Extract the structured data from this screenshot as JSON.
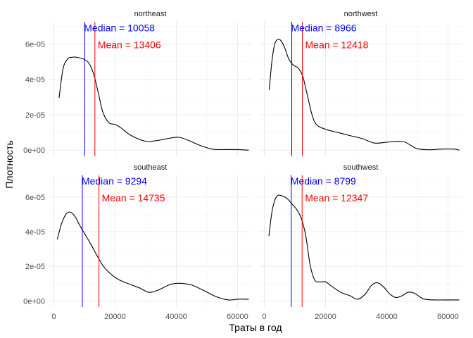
{
  "chart_data": {
    "type": "line",
    "xlabel": "Траты в год",
    "ylabel": "Плотность",
    "xlim": [
      -1500,
      64500
    ],
    "ylim": [
      -3.5e-06,
      7.25e-05
    ],
    "x_ticks": [
      0,
      20000,
      40000,
      60000
    ],
    "x_tick_labels": [
      "0",
      "20000",
      "40000",
      "60000"
    ],
    "y_ticks": [
      0,
      2e-05,
      4e-05,
      6e-05
    ],
    "y_tick_labels": [
      "0e+00",
      "2e-05",
      "4e-05",
      "6e-05"
    ],
    "grid": true,
    "colors": {
      "median": "#0000ff",
      "mean": "#ff0000",
      "density": "#000000"
    },
    "panels": [
      {
        "title": "northeast",
        "median": 10058,
        "mean": 13406,
        "median_label": "Median = 10058",
        "mean_label": "Mean = 13406",
        "x": [
          1700,
          3000,
          4500,
          6000,
          8000,
          10000,
          11500,
          13000,
          14500,
          16000,
          18000,
          20000,
          22000,
          25000,
          30000,
          34000,
          38000,
          41000,
          44000,
          48000,
          52000,
          56000,
          60000,
          63700
        ],
        "y": [
          2.95e-05,
          4.6e-05,
          5.15e-05,
          5.25e-05,
          5.23e-05,
          5.12e-05,
          4.9e-05,
          4.3e-05,
          3.25e-05,
          2.15e-05,
          1.55e-05,
          1.45e-05,
          1.25e-05,
          8.5e-06,
          5e-06,
          5.5e-06,
          6.8e-06,
          7.2e-06,
          5.5e-06,
          2.5e-06,
          5e-07,
          3e-07,
          3e-07,
          0
        ]
      },
      {
        "title": "northwest",
        "median": 8966,
        "mean": 12418,
        "median_label": "Median = 8966",
        "mean_label": "Mean = 12418",
        "x": [
          1600,
          2500,
          3500,
          5000,
          6500,
          8000,
          9500,
          11000,
          12500,
          14000,
          15500,
          17000,
          20000,
          24000,
          28000,
          32000,
          36000,
          40000,
          44000,
          46000,
          48000,
          50000,
          54000,
          58000,
          62000,
          63700
        ],
        "y": [
          3.4e-05,
          5.05e-05,
          6.05e-05,
          6.25e-05,
          5.85e-05,
          5.15e-05,
          4.8e-05,
          4.65e-05,
          4.2e-05,
          3.15e-05,
          2.05e-05,
          1.45e-05,
          1.18e-05,
          1e-05,
          8.2e-06,
          6.5e-06,
          4e-06,
          4.5e-06,
          5e-06,
          4.5e-06,
          2.5e-06,
          8e-07,
          2e-07,
          6e-07,
          6e-07,
          0
        ]
      },
      {
        "title": "southeast",
        "median": 9294,
        "mean": 14735,
        "median_label": "Median = 9294",
        "mean_label": "Mean = 14735",
        "x": [
          1100,
          2500,
          4000,
          5500,
          7000,
          8500,
          10000,
          12000,
          14000,
          16000,
          18000,
          21000,
          25000,
          28000,
          31000,
          34000,
          38000,
          41000,
          45000,
          49000,
          53000,
          57000,
          60000,
          63700
        ],
        "y": [
          3.55e-05,
          4.45e-05,
          5.02e-05,
          5.12e-05,
          4.85e-05,
          4.35e-05,
          3.9e-05,
          3.3e-05,
          2.65e-05,
          2.05e-05,
          1.65e-05,
          1.25e-05,
          9.5e-06,
          7.5e-06,
          5e-06,
          6.2e-06,
          9.5e-06,
          1.02e-05,
          9.2e-06,
          6e-06,
          2.5e-06,
          6e-07,
          1e-06,
          1e-06
        ]
      },
      {
        "title": "southwest",
        "median": 8799,
        "mean": 12347,
        "median_label": "Median = 8799",
        "mean_label": "Mean = 12347",
        "x": [
          1500,
          2500,
          3500,
          4500,
          6000,
          7500,
          9000,
          10500,
          12000,
          13500,
          15000,
          16500,
          18000,
          20000,
          22000,
          25000,
          28000,
          30500,
          33000,
          35000,
          37000,
          39000,
          41000,
          43000,
          45000,
          47000,
          49000,
          52000,
          56000,
          60000,
          63700
        ],
        "y": [
          3.75e-05,
          5.15e-05,
          5.85e-05,
          6.1e-05,
          6.05e-05,
          5.9e-05,
          5.6e-05,
          5.3e-05,
          4.8e-05,
          3.8e-05,
          2.05e-05,
          1.2e-05,
          1.1e-05,
          1.1e-05,
          8.5e-06,
          5e-06,
          3e-06,
          1e-06,
          4e-06,
          9e-06,
          1.05e-05,
          8e-06,
          4e-06,
          2e-06,
          3e-06,
          5e-06,
          4.5e-06,
          1.2e-06,
          6e-07,
          6e-07,
          6e-07
        ]
      }
    ]
  }
}
